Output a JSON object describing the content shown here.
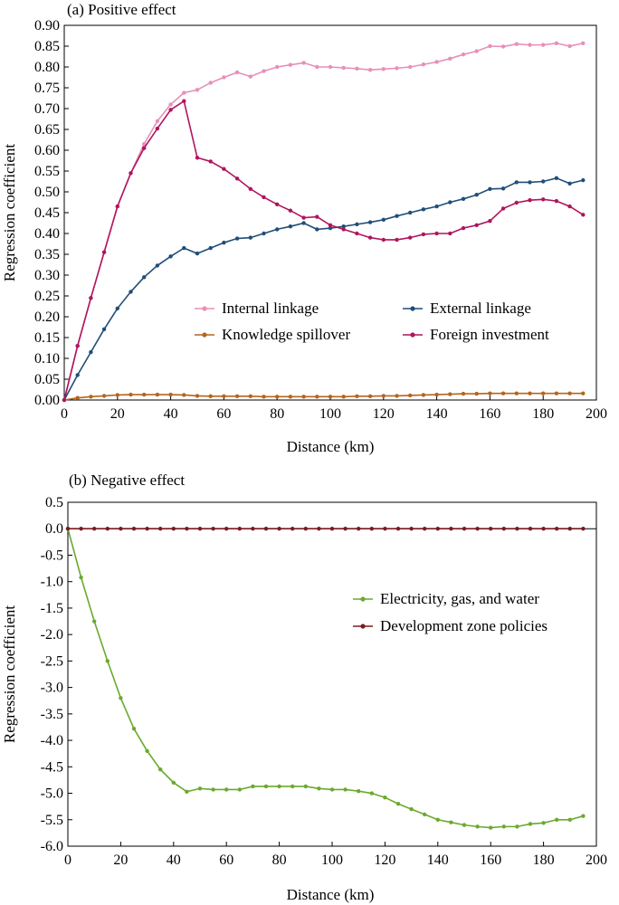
{
  "chart_data": [
    {
      "type": "line",
      "title": "(a) Positive effect",
      "xlabel": "Distance (km)",
      "ylabel": "Regression coefficient",
      "xlim": [
        0,
        200
      ],
      "ylim": [
        0,
        0.9
      ],
      "xticks": [
        "0",
        "20",
        "40",
        "60",
        "80",
        "100",
        "120",
        "140",
        "160",
        "180",
        "200"
      ],
      "yticks": [
        "0.00",
        "0.05",
        "0.10",
        "0.15",
        "0.20",
        "0.25",
        "0.30",
        "0.35",
        "0.40",
        "0.45",
        "0.50",
        "0.55",
        "0.60",
        "0.65",
        "0.70",
        "0.75",
        "0.80",
        "0.85",
        "0.90"
      ],
      "legend_position": "lower-right",
      "x": [
        0,
        5,
        10,
        15,
        20,
        25,
        30,
        35,
        40,
        45,
        50,
        55,
        60,
        65,
        70,
        75,
        80,
        85,
        90,
        95,
        100,
        105,
        110,
        115,
        120,
        125,
        130,
        135,
        140,
        145,
        150,
        155,
        160,
        165,
        170,
        175,
        180,
        185,
        190,
        195
      ],
      "series": [
        {
          "name": "Internal linkage",
          "color": "#e88fb8",
          "values": [
            0.0,
            0.13,
            0.245,
            0.355,
            0.465,
            0.545,
            0.615,
            0.67,
            0.71,
            0.738,
            0.745,
            0.762,
            0.775,
            0.787,
            0.777,
            0.79,
            0.8,
            0.805,
            0.81,
            0.8,
            0.8,
            0.798,
            0.796,
            0.793,
            0.795,
            0.797,
            0.8,
            0.806,
            0.812,
            0.82,
            0.83,
            0.838,
            0.85,
            0.849,
            0.855,
            0.853,
            0.853,
            0.857,
            0.85,
            0.857
          ]
        },
        {
          "name": "External linkage",
          "color": "#1f4e79",
          "values": [
            0.0,
            0.06,
            0.115,
            0.17,
            0.22,
            0.26,
            0.295,
            0.323,
            0.345,
            0.365,
            0.352,
            0.365,
            0.378,
            0.388,
            0.39,
            0.4,
            0.41,
            0.417,
            0.425,
            0.41,
            0.413,
            0.417,
            0.422,
            0.427,
            0.433,
            0.442,
            0.45,
            0.458,
            0.465,
            0.475,
            0.483,
            0.493,
            0.507,
            0.508,
            0.523,
            0.523,
            0.525,
            0.533,
            0.52,
            0.528
          ]
        },
        {
          "name": "Knowledge spillover",
          "color": "#b5651d",
          "values": [
            0.0,
            0.005,
            0.008,
            0.01,
            0.012,
            0.013,
            0.013,
            0.013,
            0.013,
            0.012,
            0.01,
            0.009,
            0.009,
            0.009,
            0.009,
            0.008,
            0.008,
            0.008,
            0.008,
            0.008,
            0.008,
            0.008,
            0.009,
            0.009,
            0.01,
            0.01,
            0.011,
            0.012,
            0.013,
            0.014,
            0.015,
            0.015,
            0.016,
            0.016,
            0.016,
            0.016,
            0.016,
            0.016,
            0.016,
            0.016
          ]
        },
        {
          "name": "Foreign investment",
          "color": "#b0145e",
          "values": [
            0.0,
            0.13,
            0.245,
            0.355,
            0.465,
            0.545,
            0.605,
            0.652,
            0.697,
            0.718,
            0.582,
            0.573,
            0.555,
            0.532,
            0.507,
            0.487,
            0.47,
            0.455,
            0.438,
            0.44,
            0.42,
            0.41,
            0.4,
            0.39,
            0.385,
            0.385,
            0.39,
            0.398,
            0.4,
            0.4,
            0.413,
            0.42,
            0.43,
            0.46,
            0.474,
            0.48,
            0.482,
            0.478,
            0.465,
            0.445
          ]
        }
      ]
    },
    {
      "type": "line",
      "title": "(b) Negative effect",
      "xlabel": "Distance (km)",
      "ylabel": "Regression coefficient",
      "xlim": [
        0,
        200
      ],
      "ylim": [
        -6.0,
        0.5
      ],
      "xticks": [
        "0",
        "20",
        "40",
        "60",
        "80",
        "100",
        "120",
        "140",
        "160",
        "180",
        "200"
      ],
      "yticks": [
        "0.5",
        "0.0",
        "-0.5",
        "-1.0",
        "-1.5",
        "-2.0",
        "-2.5",
        "-3.0",
        "-3.5",
        "-4.0",
        "-4.5",
        "-5.0",
        "-5.5",
        "-6.0"
      ],
      "legend_position": "right",
      "x": [
        0,
        5,
        10,
        15,
        20,
        25,
        30,
        35,
        40,
        45,
        50,
        55,
        60,
        65,
        70,
        75,
        80,
        85,
        90,
        95,
        100,
        105,
        110,
        115,
        120,
        125,
        130,
        135,
        140,
        145,
        150,
        155,
        160,
        165,
        170,
        175,
        180,
        185,
        190,
        195
      ],
      "series": [
        {
          "name": "Electricity, gas, and water",
          "color": "#6aaa2e",
          "values": [
            0.0,
            -0.92,
            -1.75,
            -2.5,
            -3.2,
            -3.78,
            -4.2,
            -4.55,
            -4.8,
            -4.97,
            -4.91,
            -4.93,
            -4.93,
            -4.93,
            -4.87,
            -4.87,
            -4.87,
            -4.87,
            -4.87,
            -4.91,
            -4.93,
            -4.93,
            -4.96,
            -5.0,
            -5.08,
            -5.2,
            -5.3,
            -5.4,
            -5.5,
            -5.55,
            -5.6,
            -5.63,
            -5.65,
            -5.63,
            -5.63,
            -5.58,
            -5.56,
            -5.5,
            -5.5,
            -5.43
          ]
        },
        {
          "name": "Development zone policies",
          "color": "#7b1a22",
          "values": [
            0.0,
            0.0,
            0.0,
            0.0,
            0.0,
            0.0,
            0.0,
            0.0,
            0.0,
            0.0,
            0.0,
            0.0,
            0.0,
            0.0,
            0.0,
            0.0,
            0.0,
            0.0,
            0.0,
            0.0,
            0.0,
            0.0,
            0.0,
            0.0,
            0.0,
            0.0,
            0.0,
            0.0,
            0.0,
            0.0,
            0.0,
            0.0,
            0.0,
            0.0,
            0.0,
            0.0,
            0.0,
            0.0,
            0.0,
            0.0
          ]
        }
      ]
    }
  ]
}
